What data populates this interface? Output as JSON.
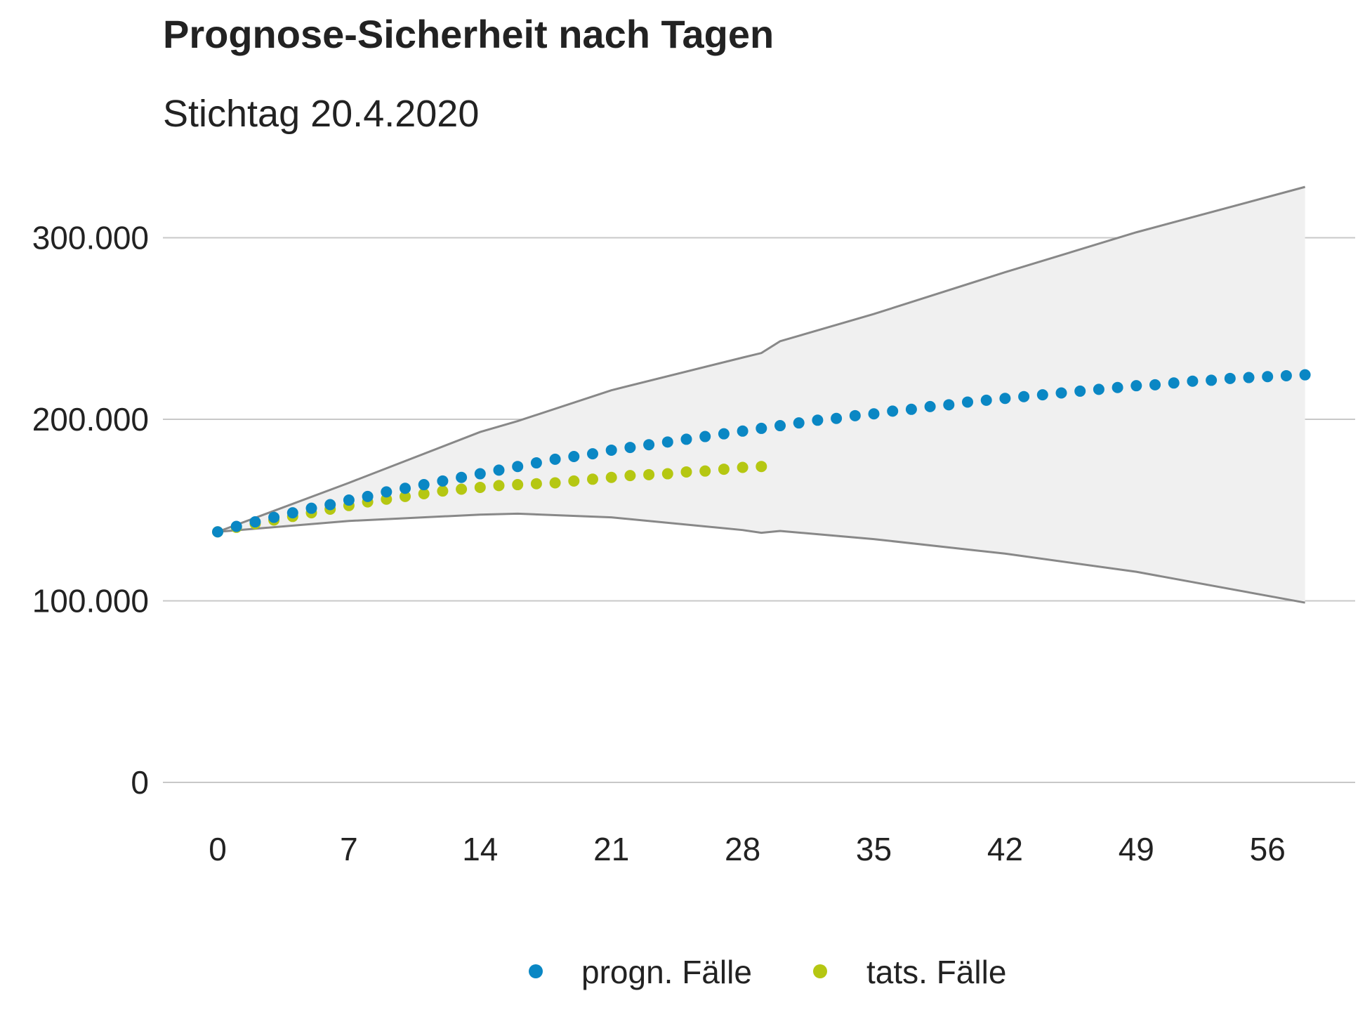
{
  "chart_data": {
    "type": "scatter",
    "title": "Prognose-Sicherheit nach Tagen",
    "subtitle": "Stichtag 20.4.2020",
    "xlabel": "",
    "ylabel": "",
    "xlim": [
      0,
      58
    ],
    "ylim": [
      0,
      300000
    ],
    "x_ticks": [
      0,
      7,
      14,
      21,
      28,
      35,
      42,
      49,
      56
    ],
    "x_tick_labels": [
      "0",
      "7",
      "14",
      "21",
      "28",
      "35",
      "42",
      "49",
      "56"
    ],
    "y_ticks": [
      0,
      100000,
      200000,
      300000
    ],
    "y_tick_labels": [
      "0",
      "100.000",
      "200.000",
      "300.000"
    ],
    "grid": "horizontal",
    "legend": "bottom",
    "colors": {
      "prognose": "#0a87c4",
      "tatsaechlich": "#b5c712",
      "band": "#f0f0f0",
      "band_line": "#888888",
      "grid": "#c8c8c8"
    },
    "band": {
      "x": [
        0,
        7,
        14,
        16,
        21,
        28,
        29,
        30,
        35,
        42,
        49,
        58
      ],
      "upper": [
        138000,
        165000,
        193000,
        199000,
        216000,
        234000,
        236500,
        243000,
        258000,
        281000,
        303000,
        328000
      ],
      "lower": [
        138000,
        144000,
        147500,
        148000,
        146000,
        139000,
        137500,
        138500,
        134000,
        126000,
        116000,
        99000
      ]
    },
    "series": [
      {
        "name": "progn. Fälle",
        "x": [
          0,
          1,
          2,
          3,
          4,
          5,
          6,
          7,
          8,
          9,
          10,
          11,
          12,
          13,
          14,
          15,
          16,
          17,
          18,
          19,
          20,
          21,
          22,
          23,
          24,
          25,
          26,
          27,
          28,
          29,
          30,
          31,
          32,
          33,
          34,
          35,
          36,
          37,
          38,
          39,
          40,
          41,
          42,
          43,
          44,
          45,
          46,
          47,
          48,
          49,
          50,
          51,
          52,
          53,
          54,
          55,
          56,
          57,
          58
        ],
        "values": [
          138000,
          141000,
          143500,
          146000,
          148500,
          151000,
          153000,
          155500,
          157500,
          160000,
          162000,
          164000,
          166000,
          168000,
          170000,
          172000,
          174000,
          176000,
          178000,
          179500,
          181000,
          183000,
          184500,
          186000,
          187500,
          189000,
          190500,
          192000,
          193500,
          195000,
          196500,
          198000,
          199500,
          200500,
          202000,
          203000,
          204500,
          205500,
          207000,
          208000,
          209500,
          210500,
          211500,
          212500,
          213500,
          214500,
          215500,
          216500,
          217500,
          218500,
          219000,
          220000,
          221000,
          221500,
          222500,
          223000,
          223500,
          224000,
          224500
        ]
      },
      {
        "name": "tats. Fälle",
        "x": [
          0,
          1,
          2,
          3,
          4,
          5,
          6,
          7,
          8,
          9,
          10,
          11,
          12,
          13,
          14,
          15,
          16,
          17,
          18,
          19,
          20,
          21,
          22,
          23,
          24,
          25,
          26,
          27,
          28,
          29
        ],
        "values": [
          138000,
          140500,
          142500,
          144500,
          146500,
          148500,
          150500,
          152500,
          154500,
          156000,
          157500,
          159000,
          160500,
          161500,
          162500,
          163500,
          164000,
          164500,
          165000,
          166000,
          167000,
          168000,
          169000,
          169500,
          170000,
          171000,
          171500,
          172500,
          173500,
          174000
        ]
      }
    ]
  }
}
